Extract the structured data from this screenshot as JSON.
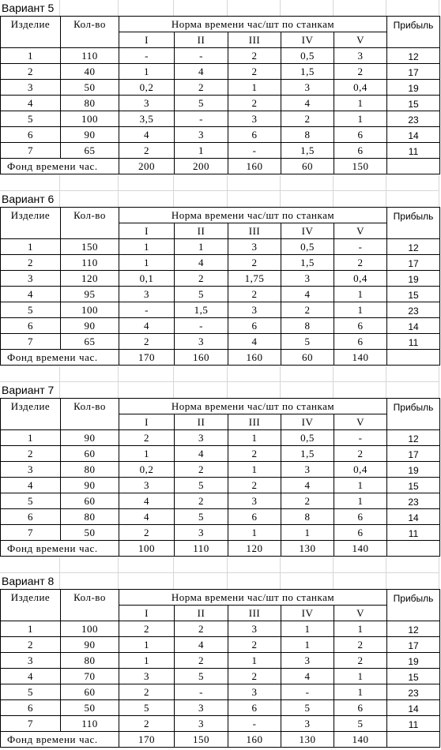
{
  "header": {
    "item": "Изделие",
    "qty": "Кол-во",
    "norm": "Норма времени час/шт по станкам",
    "profit": "Прибыль",
    "machines": [
      "I",
      "II",
      "III",
      "IV",
      "V"
    ],
    "fund": "Фонд времени час."
  },
  "variants": [
    {
      "title": "Вариант 5",
      "rows": [
        [
          "1",
          "110",
          "-",
          "-",
          "2",
          "0,5",
          "3",
          "12"
        ],
        [
          "2",
          "40",
          "1",
          "4",
          "2",
          "1,5",
          "2",
          "17"
        ],
        [
          "3",
          "50",
          "0,2",
          "2",
          "1",
          "3",
          "0,4",
          "19"
        ],
        [
          "4",
          "80",
          "3",
          "5",
          "2",
          "4",
          "1",
          "15"
        ],
        [
          "5",
          "100",
          "3,5",
          "-",
          "3",
          "2",
          "1",
          "23"
        ],
        [
          "6",
          "90",
          "4",
          "3",
          "6",
          "8",
          "6",
          "14"
        ],
        [
          "7",
          "65",
          "2",
          "1",
          "-",
          "1,5",
          "6",
          "11"
        ]
      ],
      "fund": [
        "200",
        "200",
        "160",
        "60",
        "150"
      ]
    },
    {
      "title": "Вариант 6",
      "rows": [
        [
          "1",
          "150",
          "1",
          "1",
          "3",
          "0,5",
          "-",
          "12"
        ],
        [
          "2",
          "110",
          "1",
          "4",
          "2",
          "1,5",
          "2",
          "17"
        ],
        [
          "3",
          "120",
          "0,1",
          "2",
          "1,75",
          "3",
          "0,4",
          "19"
        ],
        [
          "4",
          "95",
          "3",
          "5",
          "2",
          "4",
          "1",
          "15"
        ],
        [
          "5",
          "100",
          "-",
          "1,5",
          "3",
          "2",
          "1",
          "23"
        ],
        [
          "6",
          "90",
          "4",
          "-",
          "6",
          "8",
          "6",
          "14"
        ],
        [
          "7",
          "65",
          "2",
          "3",
          "4",
          "5",
          "6",
          "11"
        ]
      ],
      "fund": [
        "170",
        "160",
        "160",
        "60",
        "140"
      ]
    },
    {
      "title": "Вариант 7",
      "rows": [
        [
          "1",
          "90",
          "2",
          "3",
          "1",
          "0,5",
          "-",
          "12"
        ],
        [
          "2",
          "60",
          "1",
          "4",
          "2",
          "1,5",
          "2",
          "17"
        ],
        [
          "3",
          "80",
          "0,2",
          "2",
          "1",
          "3",
          "0,4",
          "19"
        ],
        [
          "4",
          "90",
          "3",
          "5",
          "2",
          "4",
          "1",
          "15"
        ],
        [
          "5",
          "60",
          "4",
          "2",
          "3",
          "2",
          "1",
          "23"
        ],
        [
          "6",
          "80",
          "4",
          "5",
          "6",
          "8",
          "6",
          "14"
        ],
        [
          "7",
          "50",
          "2",
          "3",
          "1",
          "1",
          "6",
          "11"
        ]
      ],
      "fund": [
        "100",
        "110",
        "120",
        "130",
        "140"
      ]
    },
    {
      "title": "Вариант 8",
      "rows": [
        [
          "1",
          "100",
          "2",
          "2",
          "3",
          "1",
          "1",
          "12"
        ],
        [
          "2",
          "90",
          "1",
          "4",
          "2",
          "1",
          "2",
          "17"
        ],
        [
          "3",
          "80",
          "1",
          "2",
          "1",
          "3",
          "2",
          "19"
        ],
        [
          "4",
          "70",
          "3",
          "5",
          "2",
          "4",
          "1",
          "15"
        ],
        [
          "5",
          "60",
          "2",
          "-",
          "3",
          "-",
          "1",
          "23"
        ],
        [
          "6",
          "50",
          "5",
          "3",
          "6",
          "5",
          "6",
          "14"
        ],
        [
          "7",
          "110",
          "2",
          "3",
          "-",
          "3",
          "5",
          "11"
        ]
      ],
      "fund": [
        "170",
        "150",
        "160",
        "130",
        "140"
      ]
    }
  ]
}
